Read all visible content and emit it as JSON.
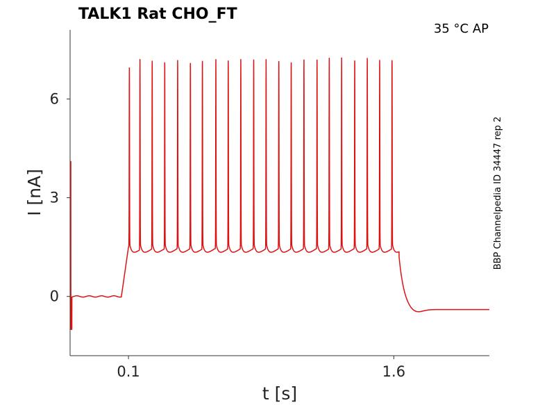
{
  "chart_data": {
    "type": "line",
    "title": "TALK1  Rat  CHO_FT",
    "condition": "35 °C  AP",
    "side_label": "BBP Channelpedia ID 34447 rep 2",
    "xlabel": "t [s]",
    "ylabel": "I [nA]",
    "xlim": [
      -0.23,
      2.14
    ],
    "ylim": [
      -1.8,
      8.1
    ],
    "x_ticks": [
      0.1,
      1.6
    ],
    "x_tick_labels": [
      "0.1",
      "1.6"
    ],
    "y_ticks": [
      0,
      3,
      6
    ],
    "y_tick_labels": [
      "0",
      "3",
      "6"
    ],
    "grid": false,
    "series": [
      {
        "color": "#dd1111",
        "stim_start_s": 0.06,
        "stim_end_s": 1.63,
        "baseline_nA": 0.0,
        "end_level_nA": -0.4,
        "spike_times_s": [
          0.105,
          0.165,
          0.234,
          0.305,
          0.378,
          0.45,
          0.518,
          0.594,
          0.664,
          0.735,
          0.808,
          0.878,
          0.95,
          1.02,
          1.092,
          1.166,
          1.235,
          1.305,
          1.379,
          1.45,
          1.52,
          1.59
        ],
        "spike_peaks_nA": [
          6.95,
          7.2,
          7.2,
          7.2,
          7.2,
          7.2,
          7.2,
          7.2,
          7.2,
          7.2,
          7.2,
          7.2,
          7.2,
          7.2,
          7.2,
          7.2,
          7.25,
          7.25,
          7.25,
          7.25,
          7.25,
          7.25
        ]
      }
    ]
  }
}
